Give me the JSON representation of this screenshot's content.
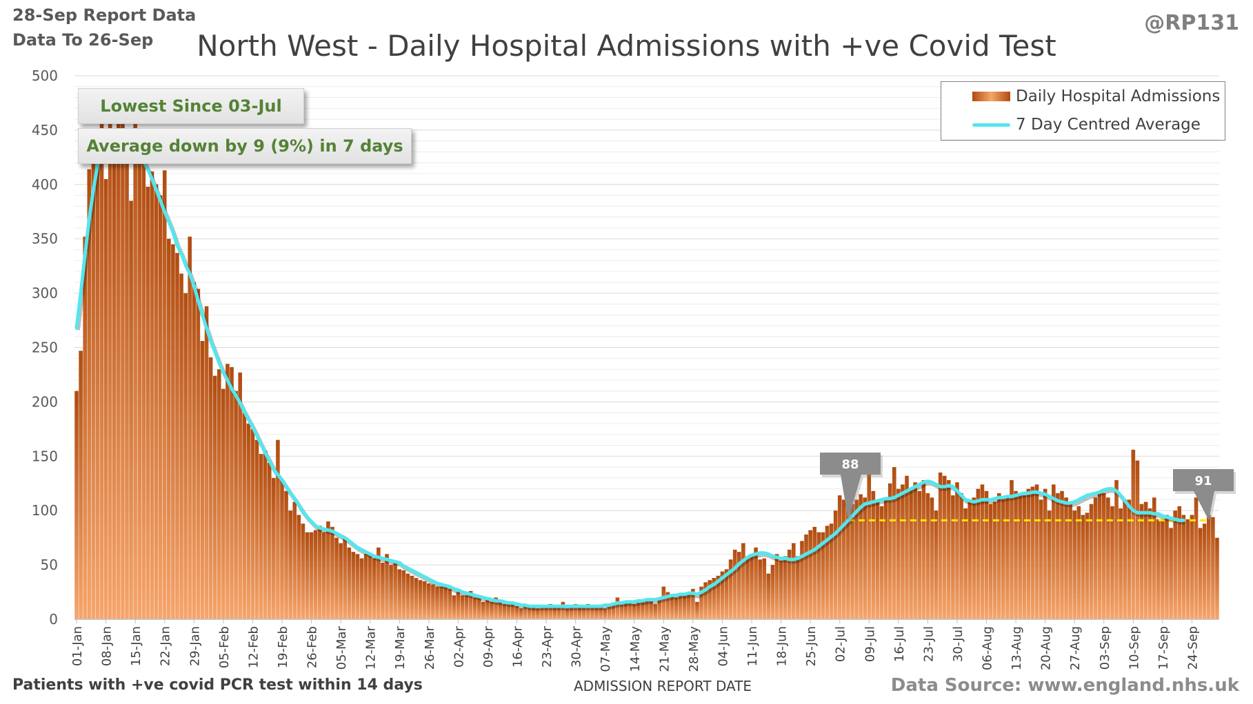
{
  "header": {
    "report_line": "28-Sep Report Data",
    "data_line": "Data To 26-Sep",
    "handle": "@RP131"
  },
  "annotations": {
    "lowest_since": "Lowest Since 03-Jul",
    "average_change": "Average down by 9 (9%) in 7 days",
    "marker_past_label": "88",
    "marker_latest_label": "91"
  },
  "footer": {
    "left_note": "Patients with +ve covid PCR test within 14 days",
    "source": "Data Source: www.england.nhs.uk"
  },
  "colors": {
    "bar_dark": "#b04c10",
    "bar_light": "#f6a56b",
    "average_line": "#55e6ee",
    "reference_line": "#ffe600",
    "marker": "#8c8c8c",
    "callout_text": "#548235"
  },
  "chart_data": {
    "type": "bar",
    "title": "North West - Daily Hospital Admissions with +ve Covid Test",
    "xlabel": "ADMISSION REPORT DATE",
    "ylabel": "",
    "ylim": [
      0,
      500
    ],
    "yticks": [
      0,
      50,
      100,
      150,
      200,
      250,
      300,
      350,
      400,
      450,
      500
    ],
    "grid": true,
    "legend_position": "top-right",
    "date_range": [
      "2021-01-01",
      "2021-09-26"
    ],
    "x_tick_labels": [
      "01-Jan",
      "08-Jan",
      "15-Jan",
      "22-Jan",
      "29-Jan",
      "05-Feb",
      "12-Feb",
      "19-Feb",
      "26-Feb",
      "05-Mar",
      "12-Mar",
      "19-Mar",
      "26-Mar",
      "02-Apr",
      "09-Apr",
      "16-Apr",
      "23-Apr",
      "30-Apr",
      "07-May",
      "14-May",
      "21-May",
      "28-May",
      "04-Jun",
      "11-Jun",
      "18-Jun",
      "25-Jun",
      "02-Jul",
      "09-Jul",
      "16-Jul",
      "23-Jul",
      "30-Jul",
      "06-Aug",
      "13-Aug",
      "20-Aug",
      "27-Aug",
      "03-Sep",
      "10-Sep",
      "17-Sep",
      "24-Sep"
    ],
    "series": [
      {
        "name": "Daily Hospital Admissions",
        "values": [
          210,
          247,
          352,
          414,
          440,
          432,
          461,
          405,
          478,
          420,
          458,
          470,
          440,
          385,
          488,
          440,
          429,
          398,
          412,
          400,
          390,
          413,
          350,
          345,
          337,
          318,
          300,
          352,
          310,
          304,
          256,
          288,
          241,
          224,
          230,
          212,
          235,
          232,
          210,
          227,
          190,
          180,
          175,
          165,
          152,
          155,
          144,
          130,
          165,
          128,
          118,
          100,
          108,
          96,
          88,
          80,
          80,
          82,
          86,
          80,
          90,
          85,
          75,
          70,
          75,
          66,
          62,
          60,
          56,
          60,
          60,
          56,
          66,
          52,
          60,
          50,
          54,
          46,
          45,
          42,
          40,
          38,
          36,
          35,
          33,
          32,
          30,
          30,
          30,
          28,
          22,
          25,
          22,
          22,
          26,
          20,
          20,
          16,
          18,
          16,
          20,
          16,
          14,
          15,
          14,
          12,
          10,
          14,
          12,
          11,
          10,
          13,
          12,
          14,
          11,
          12,
          16,
          10,
          12,
          14,
          11,
          12,
          14,
          13,
          12,
          12,
          10,
          14,
          14,
          20,
          16,
          15,
          17,
          14,
          15,
          16,
          18,
          17,
          14,
          20,
          30,
          25,
          22,
          20,
          24,
          22,
          24,
          28,
          16,
          30,
          34,
          36,
          38,
          40,
          44,
          46,
          55,
          64,
          62,
          70,
          58,
          60,
          66,
          55,
          56,
          42,
          50,
          60,
          54,
          58,
          64,
          70,
          58,
          72,
          78,
          82,
          85,
          80,
          80,
          86,
          88,
          100,
          114,
          110,
          105,
          106,
          110,
          115,
          112,
          136,
          118,
          108,
          104,
          110,
          125,
          140,
          120,
          124,
          132,
          120,
          126,
          118,
          128,
          116,
          112,
          100,
          135,
          132,
          128,
          114,
          126,
          116,
          102,
          108,
          112,
          120,
          124,
          118,
          106,
          108,
          116,
          112,
          114,
          128,
          118,
          116,
          114,
          120,
          122,
          124,
          110,
          120,
          100,
          124,
          116,
          118,
          112,
          108,
          100,
          104,
          96,
          98,
          106,
          112,
          118,
          116,
          112,
          104,
          128,
          102,
          110,
          110,
          156,
          146,
          106,
          108,
          102,
          112,
          92,
          92,
          96,
          84,
          100,
          104,
          96,
          92,
          96,
          112,
          84,
          88,
          96,
          94,
          75
        ]
      },
      {
        "name": "7 Day Centred Average",
        "values": [
          268,
          300,
          335,
          368,
          395,
          418,
          430,
          432,
          432,
          433,
          434,
          432,
          427,
          425,
          425,
          423,
          421,
          414,
          405,
          395,
          385,
          375,
          366,
          356,
          344,
          336,
          326,
          318,
          307,
          293,
          280,
          268,
          256,
          246,
          236,
          227,
          220,
          212,
          206,
          199,
          191,
          184,
          177,
          169,
          161,
          153,
          146,
          138,
          133,
          128,
          122,
          116,
          111,
          105,
          99,
          94,
          90,
          86,
          84,
          83,
          82,
          81,
          79,
          77,
          75,
          72,
          69,
          66,
          64,
          62,
          60,
          58,
          57,
          56,
          55,
          54,
          53,
          52,
          49,
          47,
          45,
          43,
          41,
          39,
          37,
          35,
          33,
          32,
          31,
          30,
          28,
          27,
          25,
          24,
          23,
          22,
          21,
          20,
          19,
          18,
          17,
          17,
          16,
          15,
          15,
          14,
          13,
          13,
          12,
          12,
          12,
          12,
          12,
          12,
          12,
          12,
          12,
          12,
          12,
          12,
          12,
          12,
          12,
          12,
          12,
          12,
          13,
          13,
          14,
          15,
          15,
          16,
          16,
          16,
          17,
          17,
          18,
          18,
          18,
          19,
          20,
          21,
          22,
          22,
          23,
          23,
          24,
          24,
          23,
          25,
          27,
          30,
          32,
          35,
          38,
          41,
          44,
          47,
          51,
          54,
          57,
          59,
          60,
          61,
          61,
          60,
          58,
          57,
          56,
          56,
          55,
          55,
          56,
          58,
          60,
          62,
          64,
          67,
          70,
          73,
          76,
          79,
          83,
          87,
          91,
          95,
          99,
          103,
          106,
          107,
          108,
          109,
          110,
          111,
          111,
          112,
          114,
          116,
          118,
          120,
          122,
          124,
          126,
          127,
          126,
          124,
          122,
          122,
          123,
          122,
          118,
          114,
          110,
          109,
          108,
          109,
          110,
          110,
          110,
          111,
          112,
          112,
          113,
          113,
          114,
          115,
          116,
          116,
          117,
          117,
          116,
          115,
          113,
          111,
          109,
          108,
          107,
          107,
          108,
          110,
          112,
          114,
          115,
          116,
          117,
          119,
          120,
          120,
          118,
          114,
          109,
          104,
          100,
          98,
          98,
          98,
          98,
          97,
          97,
          95,
          94,
          93,
          92,
          91,
          91
        ]
      }
    ],
    "reference_line_value": 91
  }
}
